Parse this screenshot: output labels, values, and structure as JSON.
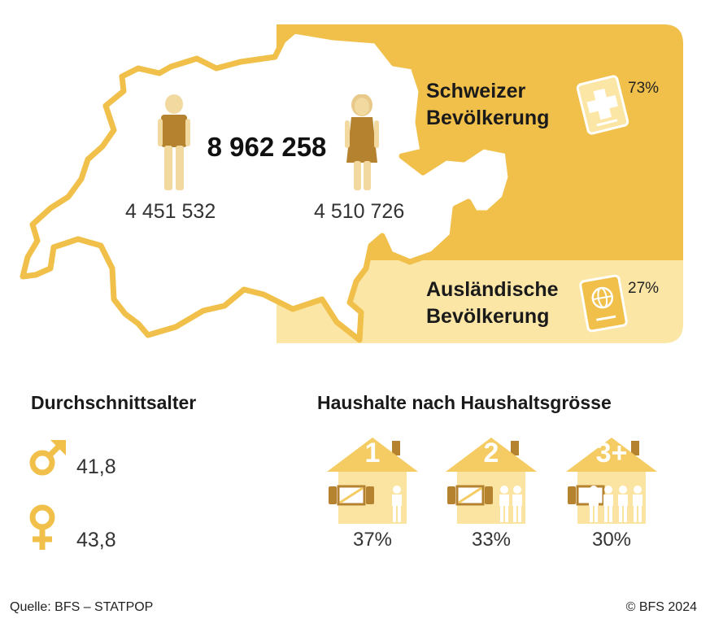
{
  "population": {
    "total": "8 962 258",
    "men": "4 451 532",
    "women": "4 510 726"
  },
  "nationality": {
    "swiss": {
      "label_line1": "Schweizer",
      "label_line2": "Bevölkerung",
      "percent": "73%"
    },
    "foreign": {
      "label_line1": "Ausländische",
      "label_line2": "Bevölkerung",
      "percent": "27%"
    }
  },
  "average_age": {
    "title": "Durchschnittsalter",
    "male": "41,8",
    "female": "43,8"
  },
  "households": {
    "title": "Haushalte nach Haushaltsgrösse",
    "items": [
      {
        "size": "1",
        "percent": "37%"
      },
      {
        "size": "2",
        "percent": "33%"
      },
      {
        "size": "3+",
        "percent": "30%"
      }
    ]
  },
  "footer": {
    "source": "Quelle: BFS – STATPOP",
    "copyright": "© BFS 2024"
  },
  "colors": {
    "gold": "#f0c04a",
    "light_gold": "#fbe6a6",
    "house": "#f5cc63",
    "house_light": "#fbe4a1",
    "brown": "#b5832f",
    "skin": "#f2d9a0"
  }
}
